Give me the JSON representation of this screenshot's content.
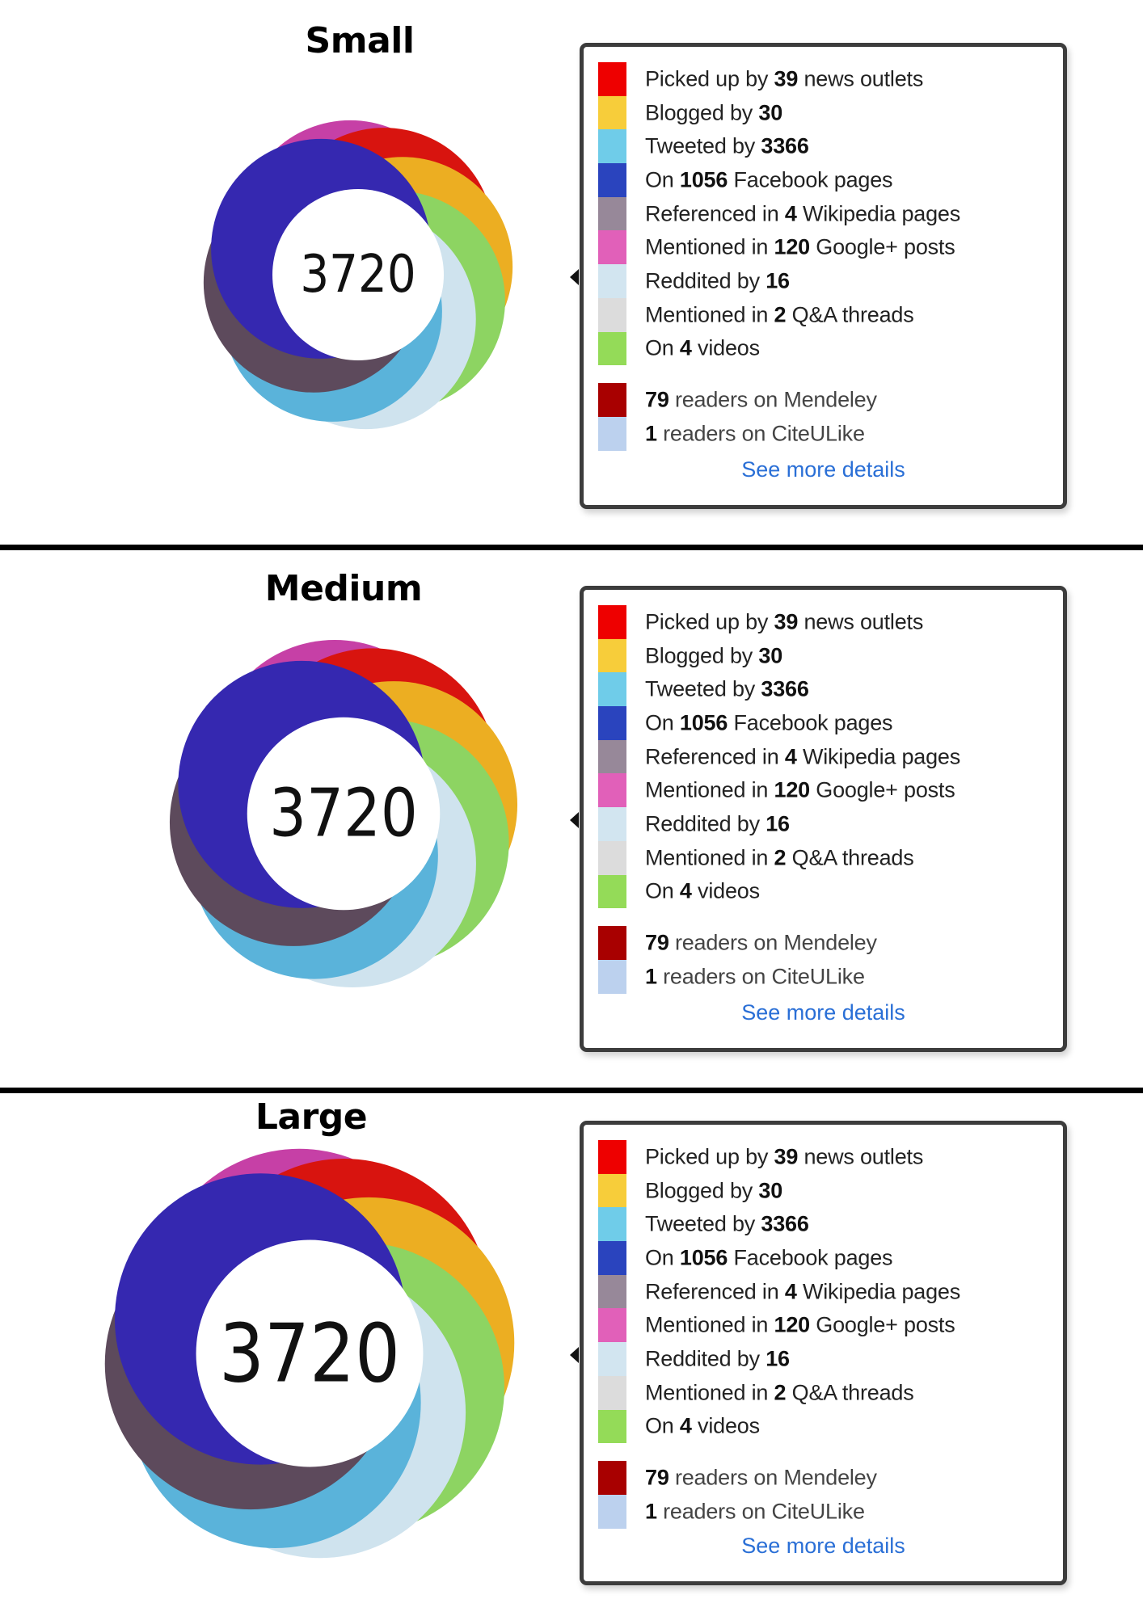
{
  "score": "3720",
  "sections": [
    {
      "title": "Small"
    },
    {
      "title": "Medium"
    },
    {
      "title": "Large"
    }
  ],
  "popup": {
    "rows": [
      {
        "id": "news",
        "pre": "Picked up by ",
        "num": "39",
        "post": " news outlets",
        "color": "#ee0000"
      },
      {
        "id": "blogs",
        "pre": "Blogged by ",
        "num": "30",
        "post": "",
        "color": "#f7cd3a"
      },
      {
        "id": "twitter",
        "pre": "Tweeted by ",
        "num": "3366",
        "post": "",
        "color": "#6fcce9"
      },
      {
        "id": "facebook",
        "pre": "On ",
        "num": "1056",
        "post": " Facebook pages",
        "color": "#2a44be"
      },
      {
        "id": "wikipedia",
        "pre": "Referenced in ",
        "num": "4",
        "post": " Wikipedia pages",
        "color": "#978899"
      },
      {
        "id": "googleplus",
        "pre": "Mentioned in ",
        "num": "120",
        "post": " Google+ posts",
        "color": "#e160b9"
      },
      {
        "id": "reddit",
        "pre": "Reddited by ",
        "num": "16",
        "post": "",
        "color": "#d2e5f0"
      },
      {
        "id": "qna",
        "pre": "Mentioned in ",
        "num": "2",
        "post": " Q&A threads",
        "color": "#dcdcdc"
      },
      {
        "id": "videos",
        "pre": "On ",
        "num": "4",
        "post": " videos",
        "color": "#94db58"
      }
    ],
    "readers": [
      {
        "id": "mendeley",
        "num": "79",
        "post": " readers on Mendeley",
        "color": "#a80000"
      },
      {
        "id": "citeulike",
        "num": "1",
        "post": " readers on CiteULike",
        "color": "#bcd1ee"
      }
    ],
    "more_link": "See more details",
    "link_color": "#2a6fd6"
  },
  "donut_colors": {
    "news": "#d8140f",
    "blogs": "#ecae22",
    "videos": "#8dd462",
    "reddit": "#cfe3ee",
    "twitter": "#5ab3da",
    "wikipedia": "#5d4a5c",
    "facebook": "#3528b0",
    "googleplus": "#c640a6"
  }
}
